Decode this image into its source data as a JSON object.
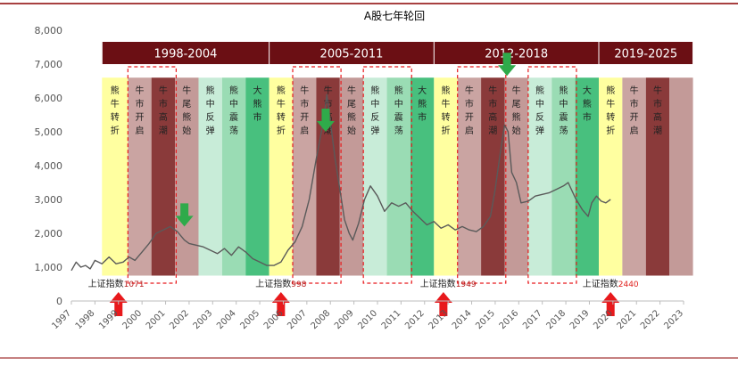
{
  "chart_data": {
    "type": "line",
    "title": "A股七年轮回",
    "ylim": [
      0,
      8000
    ],
    "yticks": [
      0,
      1000,
      2000,
      3000,
      4000,
      5000,
      6000,
      7000,
      8000
    ],
    "ytick_labels": [
      "0",
      "1,000",
      "2,000",
      "3,000",
      "4,000",
      "5,000",
      "6,000",
      "7,000",
      "8,000"
    ],
    "xlim": [
      1997,
      2023
    ],
    "xticks": [
      1997,
      1998,
      1999,
      2000,
      2001,
      2002,
      2003,
      2004,
      2005,
      2006,
      2007,
      2008,
      2009,
      2010,
      2011,
      2012,
      2013,
      2014,
      2015,
      2016,
      2017,
      2018,
      2019,
      2020,
      2021,
      2022,
      2023
    ],
    "grid": false,
    "line_color": "#5a5a5a",
    "series": [
      {
        "x": [
          1997.0,
          1997.2,
          1997.4,
          1997.6,
          1997.8,
          1998.0,
          1998.3,
          1998.6,
          1998.9,
          1999.2,
          1999.45,
          1999.7,
          2000.0,
          2000.3,
          2000.6,
          2000.9,
          2001.2,
          2001.5,
          2001.8,
          2002.0,
          2002.3,
          2002.6,
          2002.9,
          2003.2,
          2003.5,
          2003.8,
          2004.1,
          2004.4,
          2004.7,
          2005.0,
          2005.3,
          2005.6,
          2005.9,
          2006.2,
          2006.5,
          2006.8,
          2007.1,
          2007.4,
          2007.7,
          2007.85,
          2008.0,
          2008.2,
          2008.4,
          2008.6,
          2008.8,
          2008.95,
          2009.2,
          2009.45,
          2009.7,
          2010.0,
          2010.3,
          2010.6,
          2010.9,
          2011.2,
          2011.5,
          2011.8,
          2012.1,
          2012.4,
          2012.7,
          2013.0,
          2013.3,
          2013.6,
          2013.9,
          2014.2,
          2014.5,
          2014.8,
          2015.0,
          2015.2,
          2015.4,
          2015.55,
          2015.7,
          2015.9,
          2016.1,
          2016.4,
          2016.7,
          2017.0,
          2017.3,
          2017.6,
          2017.9,
          2018.1,
          2018.4,
          2018.7,
          2018.95,
          2019.1,
          2019.3,
          2019.5,
          2019.7,
          2019.9
        ],
        "y": [
          900,
          1150,
          1000,
          1050,
          950,
          1200,
          1100,
          1300,
          1100,
          1150,
          1300,
          1200,
          1450,
          1700,
          2000,
          2100,
          2200,
          2050,
          1800,
          1700,
          1650,
          1600,
          1500,
          1400,
          1550,
          1350,
          1600,
          1450,
          1250,
          1150,
          1050,
          1050,
          1150,
          1500,
          1750,
          2200,
          3000,
          4200,
          5300,
          6100,
          5300,
          4200,
          3300,
          2400,
          2000,
          1800,
          2300,
          3000,
          3400,
          3100,
          2650,
          2900,
          2800,
          2900,
          2650,
          2450,
          2250,
          2350,
          2150,
          2250,
          2100,
          2200,
          2100,
          2050,
          2200,
          2500,
          3300,
          4300,
          5200,
          5000,
          3800,
          3500,
          2900,
          2950,
          3100,
          3150,
          3200,
          3300,
          3400,
          3500,
          3050,
          2700,
          2500,
          2900,
          3100,
          2950,
          2900,
          3000
        ]
      }
    ],
    "phases": [
      {
        "start": 1998.3,
        "end": 1999.4,
        "color": "#ffffa0",
        "label": "熊牛转折"
      },
      {
        "start": 1999.4,
        "end": 2000.4,
        "color": "#caa4a2",
        "label": "牛市开启"
      },
      {
        "start": 2000.4,
        "end": 2001.4,
        "color": "#8a3a3a",
        "label": "牛市高潮"
      },
      {
        "start": 2001.4,
        "end": 2002.4,
        "color": "#c39a98",
        "label": "牛尾熊始"
      },
      {
        "start": 2002.4,
        "end": 2003.4,
        "color": "#c8ecd8",
        "label": "熊中反弹"
      },
      {
        "start": 2003.4,
        "end": 2004.4,
        "color": "#9adcb4",
        "label": "熊中震荡"
      },
      {
        "start": 2004.4,
        "end": 2005.4,
        "color": "#48c07e",
        "label": "大熊市"
      },
      {
        "start": 2005.4,
        "end": 2006.4,
        "color": "#ffffa0",
        "label": "熊牛转折"
      },
      {
        "start": 2006.4,
        "end": 2007.4,
        "color": "#caa4a2",
        "label": "牛市开启"
      },
      {
        "start": 2007.4,
        "end": 2008.4,
        "color": "#8a3a3a",
        "label": "牛市高潮"
      },
      {
        "start": 2008.4,
        "end": 2009.4,
        "color": "#c39a98",
        "label": "牛尾熊始"
      },
      {
        "start": 2009.4,
        "end": 2010.4,
        "color": "#c8ecd8",
        "label": "熊中反弹"
      },
      {
        "start": 2010.4,
        "end": 2011.4,
        "color": "#9adcb4",
        "label": "熊中震荡"
      },
      {
        "start": 2011.4,
        "end": 2012.4,
        "color": "#48c07e",
        "label": "大熊市"
      },
      {
        "start": 2012.4,
        "end": 2013.4,
        "color": "#ffffa0",
        "label": "熊牛转折"
      },
      {
        "start": 2013.4,
        "end": 2014.4,
        "color": "#caa4a2",
        "label": "牛市开启"
      },
      {
        "start": 2014.4,
        "end": 2015.4,
        "color": "#8a3a3a",
        "label": "牛市高潮"
      },
      {
        "start": 2015.4,
        "end": 2016.4,
        "color": "#c39a98",
        "label": "牛尾熊始"
      },
      {
        "start": 2016.4,
        "end": 2017.4,
        "color": "#c8ecd8",
        "label": "熊中反弹"
      },
      {
        "start": 2017.4,
        "end": 2018.4,
        "color": "#9adcb4",
        "label": "熊中震荡"
      },
      {
        "start": 2018.4,
        "end": 2019.4,
        "color": "#48c07e",
        "label": "大熊市"
      },
      {
        "start": 2019.4,
        "end": 2020.4,
        "color": "#ffffa0",
        "label": "熊牛转折"
      },
      {
        "start": 2020.4,
        "end": 2021.4,
        "color": "#caa4a2",
        "label": "牛市开启"
      },
      {
        "start": 2021.4,
        "end": 2022.4,
        "color": "#8a3a3a",
        "label": "牛市高潮"
      },
      {
        "start": 2022.4,
        "end": 2023.4,
        "color": "#c39a98",
        "label": ""
      }
    ],
    "cycles": [
      {
        "label": "1998-2004",
        "start": 1998.3,
        "end": 2005.4
      },
      {
        "label": "2005-2011",
        "start": 2005.4,
        "end": 2012.4
      },
      {
        "label": "2012-2018",
        "start": 2012.4,
        "end": 2019.4
      },
      {
        "label": "2019-2025",
        "start": 2019.4,
        "end": 2023.4
      }
    ],
    "bull_boxes": [
      {
        "start": 1999.4,
        "end": 2001.45
      },
      {
        "start": 2006.4,
        "end": 2008.45
      },
      {
        "start": 2013.4,
        "end": 2015.45
      },
      {
        "start": 2009.4,
        "end": 2011.45
      },
      {
        "start": 2016.4,
        "end": 2018.45
      }
    ],
    "annotations": [
      {
        "prefix": "上证指数",
        "value": "1071",
        "x": 1998.9,
        "value_color": "#b41e1e"
      },
      {
        "prefix": "上证指数",
        "value": "998",
        "x": 2005.9,
        "value_color": "#b41e1e"
      },
      {
        "prefix": "上证指数",
        "value": "1949",
        "x": 2013.0,
        "value_color": "#b41e1e"
      },
      {
        "prefix": "上证指数",
        "value": "2440",
        "x": 2019.9,
        "value_color": "#e0201c"
      }
    ],
    "up_arrows": [
      1999.0,
      2005.9,
      2012.8,
      2019.9
    ],
    "down_arrows": [
      {
        "x": 2001.8,
        "y": 2200
      },
      {
        "x": 2007.8,
        "y": 5000
      },
      {
        "x": 2015.5,
        "y": 6650
      }
    ],
    "colors": {
      "cycle_band": "#6b0f14",
      "up_arrow": "#e8191c",
      "down_arrow": "#2faa4a",
      "dashed_box": "#e8191c",
      "axis": "#bdbdbd",
      "tick_text": "#555555",
      "top_rule": "#8b0000"
    }
  }
}
